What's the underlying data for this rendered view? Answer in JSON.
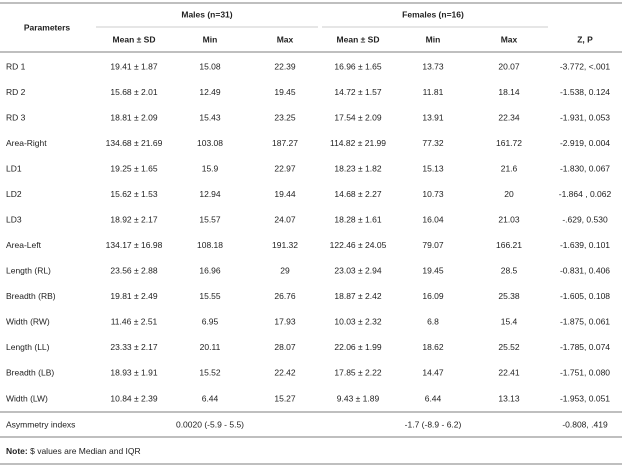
{
  "table": {
    "header": {
      "parameters": "Parameters",
      "groups": [
        "Males (n=31)",
        "Females (n=16)"
      ],
      "columns": [
        "Mean ± SD",
        "Min",
        "Max",
        "Mean ± SD",
        "Min",
        "Max",
        "Z, P"
      ]
    },
    "rows": [
      [
        "RD 1",
        "19.41 ± 1.87",
        "15.08",
        "22.39",
        "16.96 ± 1.65",
        "13.73",
        "20.07",
        "-3.772, <.001"
      ],
      [
        "RD 2",
        "15.68 ± 2.01",
        "12.49",
        "19.45",
        "14.72 ± 1.57",
        "11.81",
        "18.14",
        "-1.538, 0.124"
      ],
      [
        "RD 3",
        "18.81 ± 2.09",
        "15.43",
        "23.25",
        "17.54 ± 2.09",
        "13.91",
        "22.34",
        "-1.931, 0.053"
      ],
      [
        "Area-Right",
        "134.68 ± 21.69",
        "103.08",
        "187.27",
        "114.82 ± 21.99",
        "77.32",
        "161.72",
        "-2.919, 0.004"
      ],
      [
        "LD1",
        "19.25 ± 1.65",
        "15.9",
        "22.97",
        "18.23 ± 1.82",
        "15.13",
        "21.6",
        "-1.830, 0.067"
      ],
      [
        "LD2",
        "15.62 ± 1.53",
        "12.94",
        "19.44",
        "14.68 ± 2.27",
        "10.73",
        "20",
        "-1.864 , 0.062"
      ],
      [
        "LD3",
        "18.92 ± 2.17",
        "15.57",
        "24.07",
        "18.28 ± 1.61",
        "16.04",
        "21.03",
        "-.629, 0.530"
      ],
      [
        "Area-Left",
        "134.17 ± 16.98",
        "108.18",
        "191.32",
        "122.46 ± 24.05",
        "79.07",
        "166.21",
        "-1.639, 0.101"
      ],
      [
        "Length (RL)",
        "23.56 ± 2.88",
        "16.96",
        "29",
        "23.03 ± 2.94",
        "19.45",
        "28.5",
        "-0.831, 0.406"
      ],
      [
        "Breadth (RB)",
        "19.81 ± 2.49",
        "15.55",
        "26.76",
        "18.87 ± 2.42",
        "16.09",
        "25.38",
        "-1.605, 0.108"
      ],
      [
        "Width (RW)",
        "11.46 ± 2.51",
        "6.95",
        "17.93",
        "10.03 ± 2.32",
        "6.8",
        "15.4",
        "-1.875, 0.061"
      ],
      [
        "Length (LL)",
        "23.33 ± 2.17",
        "20.11",
        "28.07",
        "22.06 ± 1.99",
        "18.62",
        "25.52",
        "-1.785, 0.074"
      ],
      [
        "Breadth (LB)",
        "18.93 ± 1.91",
        "15.52",
        "22.42",
        "17.85 ± 2.22",
        "14.47",
        "22.41",
        "-1.751, 0.080"
      ],
      [
        "Width (LW)",
        "10.84 ± 2.39",
        "6.44",
        "15.27",
        "9.43 ± 1.89",
        "6.44",
        "13.13",
        "-1.953, 0.051"
      ]
    ],
    "asymmetry": [
      "Asymmetry indexs",
      "0.0020 (-5.9 - 5.5)",
      "-1.7 (-8.9 - 6.2)",
      "-0.808, .419"
    ],
    "note": {
      "label": "Note:",
      "text": "$ values are Median and IQR"
    }
  }
}
